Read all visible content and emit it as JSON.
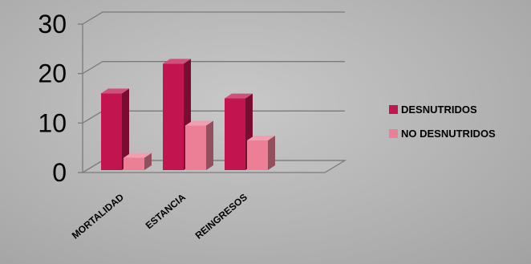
{
  "chart_data": {
    "type": "bar",
    "categories": [
      "MORTALIDAD",
      "ESTANCIA",
      "REINGRESOS"
    ],
    "series": [
      {
        "name": "DESNUTRIDOS",
        "values": [
          15.5,
          21.5,
          14.5
        ],
        "color": "#c2144f"
      },
      {
        "name": "NO DESNUTRIDOS",
        "values": [
          2.5,
          9,
          6
        ],
        "color": "#ec7f96"
      }
    ],
    "yticks": [
      0,
      10,
      20,
      30
    ],
    "ylim": [
      0,
      30
    ],
    "grid": true,
    "legend_position": "right",
    "style": "3d-column"
  }
}
